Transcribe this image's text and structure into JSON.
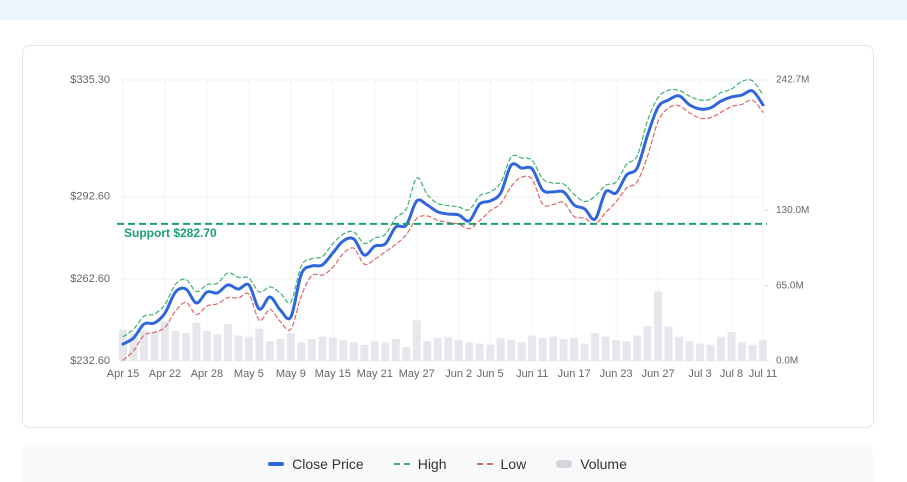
{
  "chart_data": {
    "type": "line",
    "categories": [
      "Apr 15",
      null,
      null,
      null,
      "Apr 22",
      null,
      null,
      null,
      "Apr 28",
      null,
      null,
      null,
      "May 5",
      null,
      null,
      null,
      "May 9",
      null,
      null,
      null,
      "May 15",
      null,
      null,
      null,
      "May 21",
      null,
      null,
      null,
      "May 27",
      null,
      null,
      null,
      "Jun 2",
      null,
      null,
      "Jun 5",
      null,
      null,
      null,
      "Jun 11",
      null,
      null,
      null,
      "Jun 17",
      null,
      null,
      null,
      "Jun 23",
      null,
      null,
      null,
      "Jun 27",
      null,
      null,
      null,
      "Jul 3",
      null,
      null,
      "Jul 8",
      null,
      null,
      "Jul 11"
    ],
    "series": [
      {
        "name": "Close Price",
        "color": "#2f66dc",
        "values": [
          238.8,
          241.0,
          246.1,
          246.5,
          250.1,
          257.8,
          258.9,
          253.8,
          257.8,
          257.5,
          260.4,
          258.9,
          260.4,
          251.6,
          256.0,
          251.2,
          248.7,
          264.4,
          267.3,
          267.7,
          272.1,
          276.5,
          277.2,
          271.3,
          274.6,
          275.4,
          281.6,
          282.3,
          291.1,
          289.6,
          287.1,
          286.3,
          286.0,
          283.8,
          290.0,
          291.1,
          294.0,
          304.2,
          303.1,
          302.8,
          295.1,
          294.4,
          294.4,
          289.6,
          288.2,
          284.5,
          294.4,
          294.0,
          300.6,
          303.1,
          315.2,
          325.4,
          328.0,
          329.5,
          326.2,
          324.7,
          325.1,
          327.6,
          329.1,
          329.8,
          331.3,
          326.2
        ]
      },
      {
        "name": "High",
        "color": "#3cb371",
        "dashed": true,
        "values": [
          241.5,
          244.2,
          249.0,
          249.8,
          253.3,
          260.6,
          262.4,
          258.0,
          260.5,
          261.0,
          264.8,
          263.2,
          262.9,
          257.8,
          259.7,
          257.4,
          254.2,
          267.4,
          270.0,
          270.8,
          275.5,
          279.0,
          279.8,
          275.6,
          277.5,
          278.9,
          285.0,
          288.2,
          299.5,
          293.4,
          290.2,
          289.4,
          288.9,
          287.9,
          293.0,
          294.4,
          297.8,
          307.2,
          306.8,
          305.9,
          299.2,
          297.6,
          297.3,
          293.5,
          290.9,
          292.8,
          296.8,
          298.0,
          304.5,
          307.5,
          320.5,
          328.9,
          331.6,
          331.5,
          329.4,
          328.0,
          328.3,
          330.7,
          332.0,
          334.8,
          335.0,
          329.8
        ]
      },
      {
        "name": "Low",
        "color": "#e06666",
        "dashed": true,
        "values": [
          232.9,
          236.3,
          242.0,
          243.1,
          244.9,
          250.8,
          254.0,
          249.6,
          252.7,
          253.5,
          255.8,
          255.6,
          257.0,
          247.4,
          251.5,
          247.0,
          244.2,
          256.5,
          263.8,
          264.0,
          266.8,
          271.9,
          273.8,
          268.0,
          269.8,
          272.5,
          275.2,
          278.8,
          284.7,
          285.6,
          284.0,
          283.3,
          282.6,
          281.0,
          283.9,
          287.5,
          290.2,
          296.4,
          299.8,
          299.0,
          289.9,
          289.8,
          290.5,
          285.4,
          284.8,
          282.7,
          286.8,
          290.8,
          295.8,
          298.1,
          307.5,
          320.2,
          325.1,
          325.9,
          323.3,
          321.4,
          321.5,
          323.5,
          325.6,
          326.4,
          327.9,
          323.5
        ]
      },
      {
        "name": "Volume",
        "color": "#e6e7ec",
        "type": "bar",
        "axis": "y2",
        "values": [
          27,
          23,
          26,
          25,
          34,
          26,
          24,
          33,
          26,
          23,
          32,
          22,
          21,
          28,
          17,
          19,
          24,
          16,
          19,
          21,
          20,
          18,
          16,
          14,
          17,
          16,
          19,
          12,
          35,
          17,
          20,
          21,
          18,
          16,
          15,
          14,
          20,
          18,
          16,
          22,
          20,
          21,
          19,
          20,
          15,
          24,
          21,
          18,
          17,
          22,
          30,
          60,
          30,
          21,
          17,
          15,
          14,
          21,
          25,
          16,
          14,
          18
        ]
      }
    ],
    "ylim": [
      232.6,
      335.3
    ],
    "yticks": [
      {
        "value": 232.6,
        "label": "$232.60"
      },
      {
        "value": 262.6,
        "label": "$262.60"
      },
      {
        "value": 292.6,
        "label": "$292.60"
      },
      {
        "value": 335.3,
        "label": "$335.30"
      }
    ],
    "y2lim": [
      0,
      242.7
    ],
    "y2ticks": [
      {
        "value": 0,
        "label": "0.0M"
      },
      {
        "value": 65,
        "label": "65.0M"
      },
      {
        "value": 130,
        "label": "130.0M"
      },
      {
        "value": 242.7,
        "label": "242.7M"
      }
    ],
    "annotations": [
      {
        "label": "Support $282.70",
        "y": 282.7,
        "color": "#1aa06d"
      }
    ],
    "grid": true
  }
}
